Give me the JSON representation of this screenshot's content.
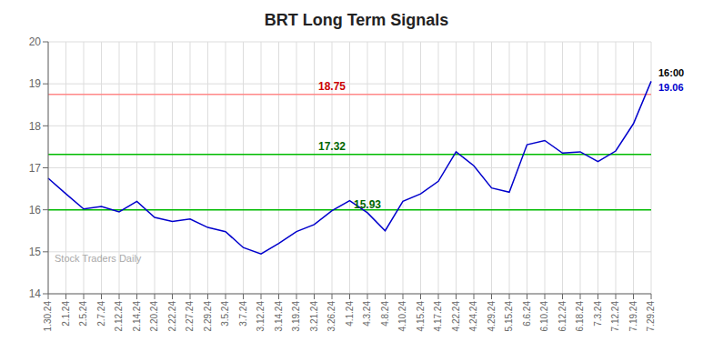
{
  "chart_data": {
    "type": "line",
    "title": "BRT Long Term Signals",
    "watermark": "Stock Traders Daily",
    "categories": [
      "1.30.24",
      "2.1.24",
      "2.5.24",
      "2.7.24",
      "2.12.24",
      "2.14.24",
      "2.20.24",
      "2.22.24",
      "2.27.24",
      "2.29.24",
      "3.5.24",
      "3.7.24",
      "3.12.24",
      "3.14.24",
      "3.19.24",
      "3.21.24",
      "3.26.24",
      "4.1.24",
      "4.3.24",
      "4.8.24",
      "4.10.24",
      "4.15.24",
      "4.17.24",
      "4.22.24",
      "4.24.24",
      "4.29.24",
      "5.15.24",
      "6.6.24",
      "6.10.24",
      "6.12.24",
      "6.18.24",
      "7.3.24",
      "7.12.24",
      "7.19.24",
      "7.29.24"
    ],
    "values": [
      16.75,
      16.38,
      16.02,
      16.08,
      15.95,
      16.2,
      15.82,
      15.72,
      15.78,
      15.58,
      15.48,
      15.1,
      14.95,
      15.2,
      15.48,
      15.65,
      15.98,
      16.22,
      15.93,
      15.5,
      16.2,
      16.38,
      16.68,
      17.38,
      17.05,
      16.52,
      16.42,
      17.55,
      17.65,
      17.35,
      17.38,
      17.15,
      17.4,
      18.05,
      19.06
    ],
    "color": "#0000cc",
    "ylim": [
      14,
      20
    ],
    "yticks": [
      14,
      15,
      16,
      17,
      18,
      19,
      20
    ],
    "grid": true,
    "reference_lines": [
      {
        "y": 18.75,
        "color": "#ff8888"
      },
      {
        "y": 17.32,
        "color": "#00bb00"
      },
      {
        "y": 16.0,
        "color": "#00bb00"
      }
    ],
    "annotations": [
      {
        "text": "18.75",
        "x": "3.26.24",
        "y": 18.75,
        "color": "#cc0000"
      },
      {
        "text": "17.32",
        "x": "3.26.24",
        "y": 17.32,
        "color": "#006600"
      },
      {
        "text": "15.93",
        "x": "4.3.24",
        "y": 15.93,
        "color": "#006600"
      },
      {
        "text": "16:00",
        "x": "7.29.24",
        "y": 19.06,
        "color": "#000000"
      },
      {
        "text": "19.06",
        "x": "7.29.24",
        "y": 19.06,
        "color": "#0000cc"
      }
    ]
  }
}
